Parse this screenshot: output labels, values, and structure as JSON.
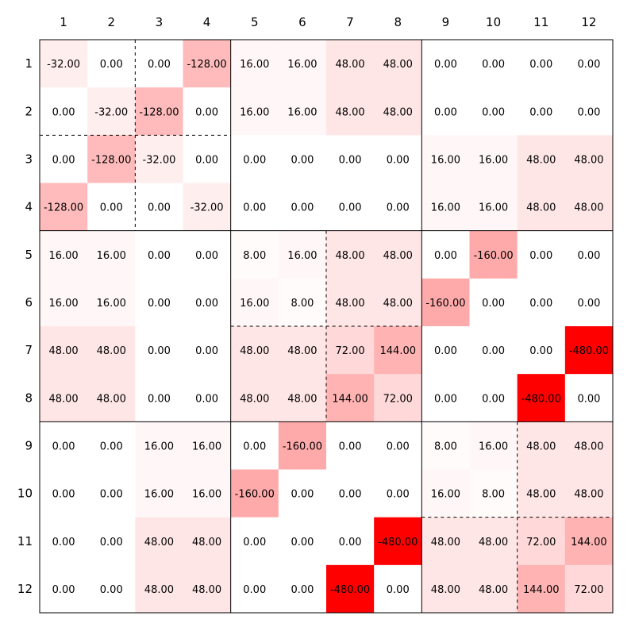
{
  "chart_data": {
    "type": "heatmap",
    "title": "",
    "xlabel": "",
    "ylabel": "",
    "x_ticks": [
      "1",
      "2",
      "3",
      "4",
      "5",
      "6",
      "7",
      "8",
      "9",
      "10",
      "11",
      "12"
    ],
    "y_ticks": [
      "1",
      "2",
      "3",
      "4",
      "5",
      "6",
      "7",
      "8",
      "9",
      "10",
      "11",
      "12"
    ],
    "values": [
      [
        -32,
        0,
        0,
        -128,
        16,
        16,
        48,
        48,
        0,
        0,
        0,
        0
      ],
      [
        0,
        -32,
        -128,
        0,
        16,
        16,
        48,
        48,
        0,
        0,
        0,
        0
      ],
      [
        0,
        -128,
        -32,
        0,
        0,
        0,
        0,
        0,
        16,
        16,
        48,
        48
      ],
      [
        -128,
        0,
        0,
        -32,
        0,
        0,
        0,
        0,
        16,
        16,
        48,
        48
      ],
      [
        16,
        16,
        0,
        0,
        8,
        16,
        48,
        48,
        0,
        -160,
        0,
        0
      ],
      [
        16,
        16,
        0,
        0,
        16,
        8,
        48,
        48,
        -160,
        0,
        0,
        0
      ],
      [
        48,
        48,
        0,
        0,
        48,
        48,
        72,
        144,
        0,
        0,
        0,
        -480
      ],
      [
        48,
        48,
        0,
        0,
        48,
        48,
        144,
        72,
        0,
        0,
        -480,
        0
      ],
      [
        0,
        0,
        16,
        16,
        0,
        -160,
        0,
        0,
        8,
        16,
        48,
        48
      ],
      [
        0,
        0,
        16,
        16,
        -160,
        0,
        0,
        0,
        16,
        8,
        48,
        48
      ],
      [
        0,
        0,
        48,
        48,
        0,
        0,
        0,
        -480,
        48,
        48,
        72,
        144
      ],
      [
        0,
        0,
        48,
        48,
        0,
        0,
        -480,
        0,
        48,
        48,
        144,
        72
      ]
    ],
    "value_format": "2 decimals",
    "colormap": {
      "zero": "#ffffff",
      "max": "#ff0000",
      "scale": "absolute value"
    },
    "block_size": 4,
    "grid": false
  }
}
